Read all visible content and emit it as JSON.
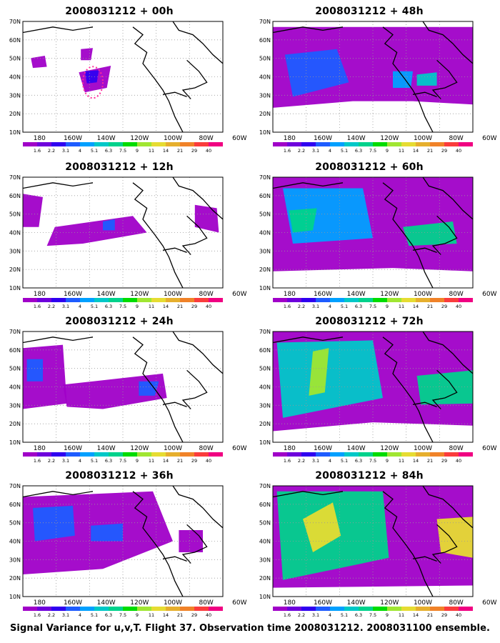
{
  "figure": {
    "footer": "Signal Variance for u,v,T. Flight 37. Observation time 2008031212. 2008031100 ensemble."
  },
  "axes": {
    "lat_labels": [
      "70N",
      "60N",
      "50N",
      "40N",
      "30N",
      "20N",
      "10N"
    ],
    "lon_labels": [
      "180",
      "160W",
      "140W",
      "120W",
      "100W",
      "80W",
      "60W"
    ]
  },
  "colorbar": {
    "labels": [
      "1.6",
      "2.2",
      "3.1",
      "4",
      "5.1",
      "6.3",
      "7.5",
      "9",
      "11",
      "14",
      "21",
      "29",
      "40"
    ],
    "colors": [
      "#a000c8",
      "#6e00dc",
      "#2f00f0",
      "#1e5cff",
      "#00a0ff",
      "#00c8c8",
      "#00d28c",
      "#00dc00",
      "#a0e632",
      "#e6dc32",
      "#e6af2d",
      "#f08228",
      "#fa3c3c",
      "#f00082"
    ]
  },
  "panels": [
    {
      "title": "2008031212 + 00h"
    },
    {
      "title": "2008031212 + 48h"
    },
    {
      "title": "2008031212 + 12h"
    },
    {
      "title": "2008031212 + 60h"
    },
    {
      "title": "2008031212 + 24h"
    },
    {
      "title": "2008031212 + 72h"
    },
    {
      "title": "2008031212 + 36h"
    },
    {
      "title": "2008031212 + 84h"
    }
  ]
}
